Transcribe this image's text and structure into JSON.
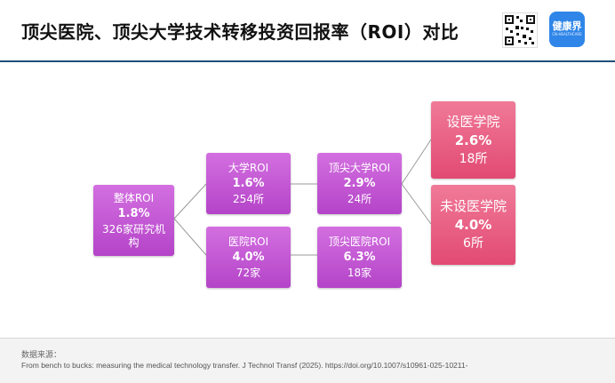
{
  "header": {
    "title": "顶尖医院、顶尖大学技术转移投资回报率（ROI）对比",
    "logo_text": "健康界",
    "logo_subtext": "CN-HEALTHCARE"
  },
  "diagram": {
    "nodes": {
      "overall": {
        "label": "整体ROI",
        "value": "1.8%",
        "count": "326家研究机构"
      },
      "university": {
        "label": "大学ROI",
        "value": "1.6%",
        "count": "254所"
      },
      "hospital": {
        "label": "医院ROI",
        "value": "4.0%",
        "count": "72家"
      },
      "top_university": {
        "label": "顶尖大学ROI",
        "value": "2.9%",
        "count": "24所"
      },
      "top_hospital": {
        "label": "顶尖医院ROI",
        "value": "6.3%",
        "count": "18家"
      },
      "with_med_school": {
        "label": "设医学院",
        "value": "2.6%",
        "count": "18所"
      },
      "without_med_school": {
        "label": "未设医学院",
        "value": "4.0%",
        "count": "6所"
      }
    },
    "colors": {
      "purple": "#c65ad8",
      "pink": "#e85c82",
      "connector": "#9a9a9a"
    }
  },
  "footer": {
    "source_label": "数据来源：",
    "source_text": "From bench to bucks: measuring the medical technology transfer. J Technol Transf (2025). https://doi.org/10.1007/s10961-025-10211-"
  }
}
